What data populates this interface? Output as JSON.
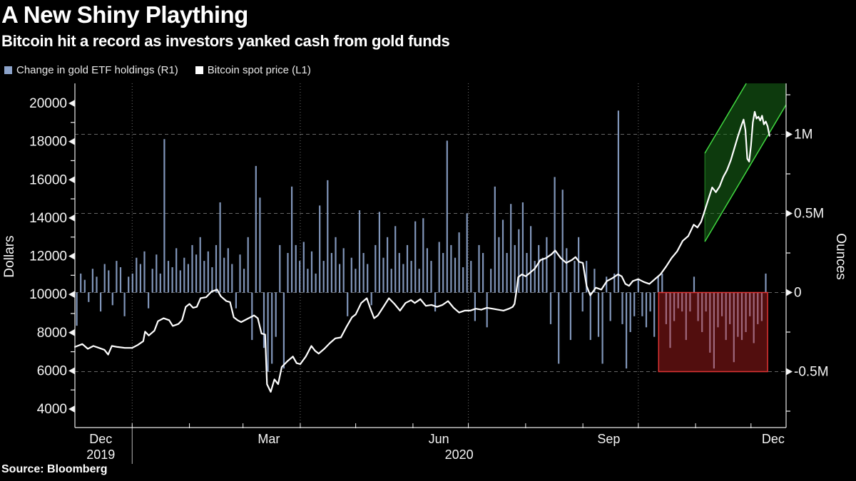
{
  "header": {
    "title": "A New Shiny Plaything",
    "subtitle": "Bitcoin hit a record as investors yanked cash from gold funds"
  },
  "legend": {
    "items": [
      {
        "label": "Change in gold ETF holdings (R1)",
        "color": "#8CA3CA"
      },
      {
        "label": "Bitcoin spot price (L1)",
        "color": "#FFFFFF"
      }
    ]
  },
  "source": "Source: Bloomberg",
  "colors": {
    "background": "#000000",
    "bar": "#8CA3CA",
    "line": "#FFFFFF",
    "grid": "#BBBBBB",
    "axis": "#E8E8E8",
    "text": "#F5F5F5",
    "red_box_fill": "rgba(205,35,35,0.40)",
    "red_box_stroke": "#E03434",
    "channel_fill": "rgba(25,115,25,0.50)",
    "channel_stroke": "#41D941"
  },
  "chart_data": {
    "type": "mixed",
    "time_domain": {
      "start": "Dec 1 2019",
      "end": "Dec 21 2020",
      "days": 385
    },
    "left_axis": {
      "title": "Dollars",
      "unit": "USD",
      "tick_values": [
        4000,
        6000,
        8000,
        10000,
        12000,
        14000,
        16000,
        18000,
        20000
      ],
      "tick_labels": [
        "4000",
        "6000",
        "8000",
        "10000",
        "12000",
        "14000",
        "16000",
        "18000",
        "20000"
      ],
      "minor_tick_values": [
        5000,
        7000,
        9000,
        11000,
        13000,
        15000,
        17000,
        19000
      ]
    },
    "right_axis": {
      "title": "Ounces",
      "unit": "millions of ounces",
      "tick_values": [
        -0.5,
        0,
        0.5,
        1
      ],
      "tick_labels": [
        "-0.5M",
        "0",
        "0.5M",
        "1M"
      ],
      "minor_tick_values": [
        -0.75,
        -0.25,
        0.25,
        0.75,
        1.25
      ],
      "gridline_values": [
        -0.5,
        0,
        0.5,
        1
      ]
    },
    "x_axis": {
      "month_tick_days": [
        31,
        62,
        91,
        122,
        152,
        183,
        213,
        244,
        275,
        305,
        336,
        366
      ],
      "vertical_gridline_days": [
        31,
        122,
        213,
        305
      ],
      "labels": [
        {
          "text": "Dec",
          "t": 14
        },
        {
          "text": "Mar",
          "t": 105
        },
        {
          "text": "Jun",
          "t": 197
        },
        {
          "text": "Sep",
          "t": 289
        },
        {
          "text": "Dec",
          "t": 378
        }
      ],
      "year_labels": [
        {
          "text": "2019",
          "t": 14
        },
        {
          "text": "2020",
          "t": 208
        }
      ],
      "year_separator_t": 31
    },
    "series": [
      {
        "name": "Change in gold ETF holdings",
        "axis": "R1",
        "type": "bar",
        "unit": "M ounces",
        "bar_start_t": 1,
        "bar_step_days": 2.156,
        "values": [
          -0.21,
          0.12,
          0.08,
          -0.06,
          0.15,
          0.1,
          -0.12,
          0.18,
          0.14,
          -0.08,
          0.2,
          0.16,
          -0.15,
          0.1,
          0.12,
          0.22,
          0.18,
          0.26,
          -0.1,
          0.15,
          0.24,
          0.12,
          0.97,
          0.2,
          0.16,
          0.28,
          0.14,
          0.22,
          0.18,
          0.3,
          0.24,
          0.35,
          0.2,
          0.26,
          0.16,
          0.3,
          0.57,
          0.22,
          0.28,
          0.18,
          -0.1,
          0.24,
          0.15,
          0.35,
          -0.3,
          0.8,
          0.6,
          -0.35,
          -0.5,
          -0.45,
          -0.28,
          0.3,
          -0.48,
          0.25,
          0.67,
          0.3,
          0.2,
          0.32,
          0.15,
          0.26,
          0.12,
          0.55,
          0.2,
          0.71,
          0.25,
          0.35,
          0.18,
          0.28,
          -0.15,
          0.22,
          0.15,
          0.52,
          0.25,
          0.18,
          -0.08,
          0.3,
          0.51,
          0.22,
          0.35,
          0.15,
          0.42,
          0.25,
          0.18,
          0.3,
          0.2,
          0.45,
          0.15,
          0.47,
          0.28,
          0.2,
          -0.12,
          0.32,
          0.25,
          0.96,
          0.3,
          0.22,
          0.38,
          0.16,
          0.5,
          0.2,
          -0.18,
          0.3,
          0.25,
          -0.22,
          0.15,
          0.67,
          0.35,
          0.46,
          0.25,
          0.56,
          0.3,
          0.4,
          0.57,
          0.25,
          0.42,
          0.2,
          0.3,
          0.22,
          0.35,
          -0.2,
          0.73,
          -0.45,
          0.65,
          0.28,
          -0.3,
          0.2,
          0.35,
          -0.12,
          0.2,
          -0.3,
          0.15,
          -0.28,
          -0.45,
          0.1,
          -0.18,
          0.12,
          1.15,
          -0.2,
          -0.48,
          -0.25,
          -0.15,
          0.08,
          -0.15,
          -0.22,
          -0.12,
          -0.28,
          0.1,
          0.12,
          -0.2,
          -0.35,
          -0.18,
          -0.1,
          -0.12,
          -0.3,
          -0.12,
          0.1,
          -0.18,
          -0.25,
          -0.12,
          -0.38,
          -0.48,
          -0.22,
          -0.15,
          -0.3,
          -0.2,
          -0.44,
          -0.28,
          -0.3,
          -0.25,
          -0.15,
          -0.32,
          -0.2,
          -0.18,
          0.12
        ]
      },
      {
        "name": "Bitcoin spot price",
        "axis": "L1",
        "type": "line",
        "unit": "USD",
        "points": [
          [
            0,
            7250
          ],
          [
            4,
            7400
          ],
          [
            7,
            7150
          ],
          [
            10,
            7300
          ],
          [
            13,
            7200
          ],
          [
            16,
            7100
          ],
          [
            18,
            6850
          ],
          [
            20,
            7300
          ],
          [
            23,
            7250
          ],
          [
            27,
            7200
          ],
          [
            31,
            7200
          ],
          [
            34,
            7350
          ],
          [
            37,
            7550
          ],
          [
            38,
            8050
          ],
          [
            40,
            7850
          ],
          [
            43,
            8100
          ],
          [
            45,
            8600
          ],
          [
            48,
            8750
          ],
          [
            51,
            8650
          ],
          [
            53,
            8350
          ],
          [
            56,
            8450
          ],
          [
            58,
            8650
          ],
          [
            60,
            9350
          ],
          [
            62,
            9500
          ],
          [
            64,
            9300
          ],
          [
            66,
            9350
          ],
          [
            68,
            9800
          ],
          [
            71,
            9850
          ],
          [
            74,
            10150
          ],
          [
            77,
            10250
          ],
          [
            79,
            9900
          ],
          [
            82,
            9650
          ],
          [
            84,
            9600
          ],
          [
            86,
            8800
          ],
          [
            88,
            8650
          ],
          [
            90,
            8550
          ],
          [
            94,
            8750
          ],
          [
            97,
            8900
          ],
          [
            99,
            8750
          ],
          [
            101,
            7950
          ],
          [
            103,
            7900
          ],
          [
            104,
            5300
          ],
          [
            106,
            4900
          ],
          [
            108,
            5550
          ],
          [
            110,
            5300
          ],
          [
            112,
            6200
          ],
          [
            115,
            6500
          ],
          [
            118,
            6750
          ],
          [
            120,
            6400
          ],
          [
            122,
            6350
          ],
          [
            125,
            6750
          ],
          [
            128,
            7300
          ],
          [
            130,
            7050
          ],
          [
            132,
            6900
          ],
          [
            135,
            7150
          ],
          [
            138,
            7450
          ],
          [
            141,
            7700
          ],
          [
            144,
            7750
          ],
          [
            147,
            8300
          ],
          [
            150,
            8800
          ],
          [
            152,
            8950
          ],
          [
            155,
            9550
          ],
          [
            158,
            9800
          ],
          [
            160,
            9250
          ],
          [
            162,
            8750
          ],
          [
            164,
            8900
          ],
          [
            167,
            9350
          ],
          [
            170,
            9800
          ],
          [
            173,
            9500
          ],
          [
            176,
            9150
          ],
          [
            179,
            9550
          ],
          [
            182,
            9700
          ],
          [
            184,
            9550
          ],
          [
            187,
            9750
          ],
          [
            190,
            9400
          ],
          [
            193,
            9450
          ],
          [
            196,
            9350
          ],
          [
            199,
            9450
          ],
          [
            202,
            9650
          ],
          [
            205,
            9300
          ],
          [
            208,
            9050
          ],
          [
            211,
            9150
          ],
          [
            214,
            9150
          ],
          [
            217,
            9250
          ],
          [
            220,
            9200
          ],
          [
            223,
            9300
          ],
          [
            226,
            9250
          ],
          [
            229,
            9200
          ],
          [
            232,
            9150
          ],
          [
            235,
            9250
          ],
          [
            237,
            9350
          ],
          [
            238,
            9500
          ],
          [
            239,
            10150
          ],
          [
            240,
            10900
          ],
          [
            242,
            11050
          ],
          [
            244,
            10950
          ],
          [
            246,
            11100
          ],
          [
            249,
            11350
          ],
          [
            252,
            11800
          ],
          [
            255,
            11900
          ],
          [
            258,
            12100
          ],
          [
            260,
            12300
          ],
          [
            263,
            11900
          ],
          [
            266,
            11650
          ],
          [
            269,
            11800
          ],
          [
            271,
            11950
          ],
          [
            273,
            11700
          ],
          [
            275,
            11650
          ],
          [
            277,
            10450
          ],
          [
            279,
            9950
          ],
          [
            282,
            10350
          ],
          [
            285,
            10250
          ],
          [
            288,
            10700
          ],
          [
            291,
            10850
          ],
          [
            294,
            11050
          ],
          [
            296,
            10950
          ],
          [
            298,
            10550
          ],
          [
            300,
            10450
          ],
          [
            302,
            10700
          ],
          [
            305,
            10800
          ],
          [
            308,
            10650
          ],
          [
            311,
            10550
          ],
          [
            314,
            10800
          ],
          [
            317,
            11050
          ],
          [
            320,
            11450
          ],
          [
            323,
            11900
          ],
          [
            326,
            12250
          ],
          [
            329,
            12800
          ],
          [
            332,
            13050
          ],
          [
            335,
            13650
          ],
          [
            337,
            13500
          ],
          [
            339,
            13800
          ],
          [
            341,
            14400
          ],
          [
            343,
            15000
          ],
          [
            345,
            15600
          ],
          [
            347,
            15350
          ],
          [
            349,
            15650
          ],
          [
            351,
            16150
          ],
          [
            353,
            16500
          ],
          [
            355,
            17000
          ],
          [
            357,
            17650
          ],
          [
            359,
            18300
          ],
          [
            361,
            18880
          ],
          [
            362,
            19150
          ],
          [
            363,
            18600
          ],
          [
            364,
            17100
          ],
          [
            365,
            16950
          ],
          [
            366,
            17800
          ],
          [
            367,
            19000
          ],
          [
            368,
            19560
          ],
          [
            369,
            19200
          ],
          [
            370,
            19300
          ],
          [
            371,
            19100
          ],
          [
            372,
            19350
          ],
          [
            373,
            18900
          ],
          [
            374,
            19050
          ],
          [
            375,
            18800
          ],
          [
            376,
            18300
          ]
        ]
      }
    ],
    "annotations": {
      "red_box": {
        "meaning": "period of gold ETF outflows",
        "t_start": 316,
        "t_end": 375,
        "ounces_top": 0,
        "ounces_bottom": -0.5
      },
      "green_channel": {
        "meaning": "bitcoin uptrend channel",
        "t_start": 341,
        "t_end": 385,
        "price_lower_start": 12760,
        "price_lower_end": 19925,
        "channel_height_dollars": 4630
      }
    }
  }
}
